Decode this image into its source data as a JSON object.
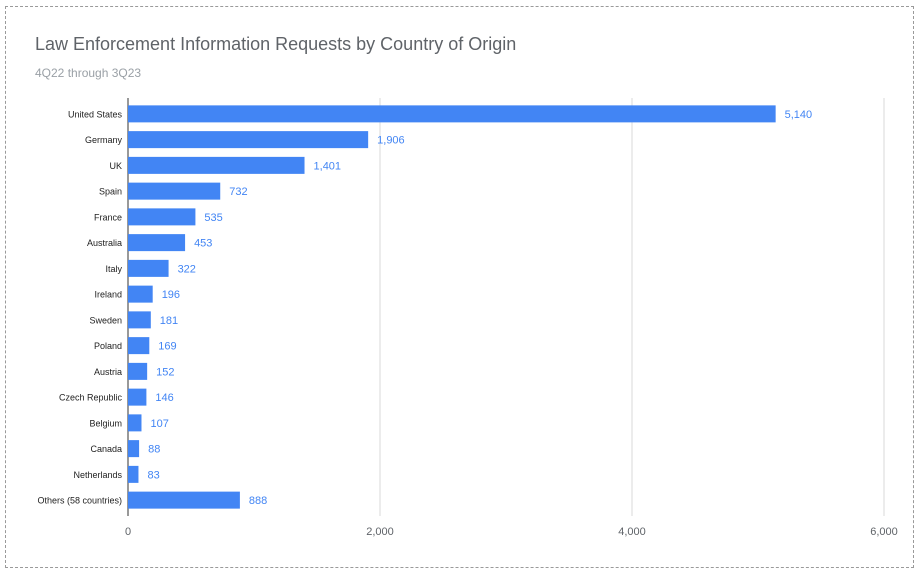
{
  "chart_data": {
    "type": "bar",
    "orientation": "horizontal",
    "title": "Law Enforcement Information Requests by Country of Origin",
    "subtitle": "4Q22 through 3Q23",
    "categories": [
      "United States",
      "Germany",
      "UK",
      "Spain",
      "France",
      "Australia",
      "Italy",
      "Ireland",
      "Sweden",
      "Poland",
      "Austria",
      "Czech Republic",
      "Belgium",
      "Canada",
      "Netherlands",
      "Others (58 countries)"
    ],
    "values": [
      5140,
      1906,
      1401,
      732,
      535,
      453,
      322,
      196,
      181,
      169,
      152,
      146,
      107,
      88,
      83,
      888
    ],
    "data_labels": [
      "5,140",
      "1,906",
      "1,401",
      "732",
      "535",
      "453",
      "322",
      "196",
      "181",
      "169",
      "152",
      "146",
      "107",
      "88",
      "83",
      "888"
    ],
    "xticks": [
      0,
      2000,
      4000,
      6000
    ],
    "xtick_labels": [
      "0",
      "2,000",
      "4,000",
      "6,000"
    ],
    "xlim": [
      0,
      6000
    ],
    "grid": true,
    "legend": "none",
    "colors": {
      "bar": "#4285f4",
      "data_label": "#4285f4",
      "gridline": "#d9d9d9",
      "axis_label": "#5f6368",
      "category_label": "#222222"
    }
  }
}
